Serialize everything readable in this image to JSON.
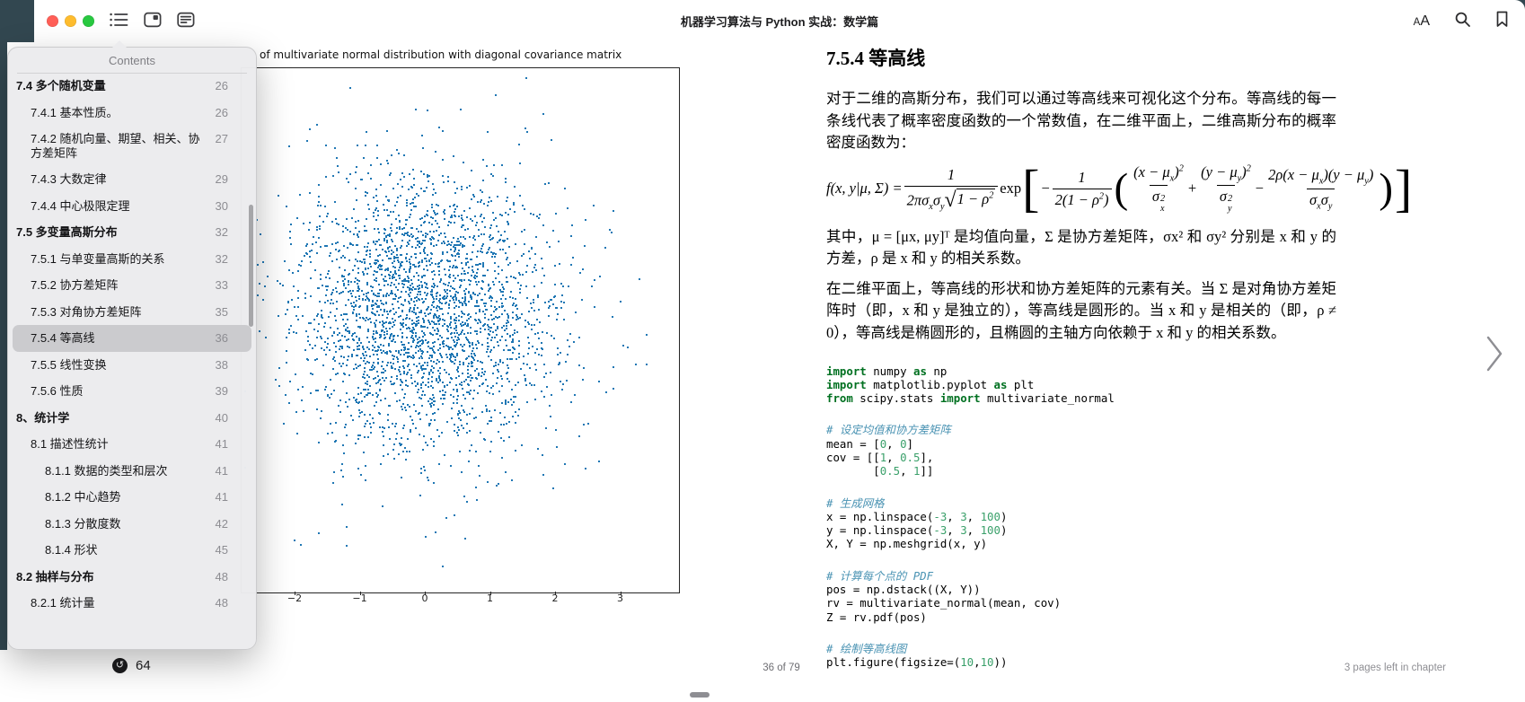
{
  "window": {
    "title": "机器学习算法与 Python 实战：数学篇",
    "toolbar": {
      "appearance_label": "AA",
      "icons_left": [
        "table-of-contents",
        "reading-view",
        "notes"
      ],
      "icons_right": [
        "text-appearance",
        "search",
        "bookmark"
      ]
    }
  },
  "contents_panel": {
    "title": "Contents",
    "items": [
      {
        "label": "7.4 多个随机变量",
        "page": "26",
        "level": 1,
        "bold": true
      },
      {
        "label": "7.4.1 基本性质。",
        "page": "26",
        "level": 2
      },
      {
        "label": "7.4.2 随机向量、期望、相关、协方差矩阵",
        "page": "27",
        "level": 2
      },
      {
        "label": "7.4.3 大数定律",
        "page": "29",
        "level": 2
      },
      {
        "label": "7.4.4 中心极限定理",
        "page": "30",
        "level": 2
      },
      {
        "label": "7.5 多变量高斯分布",
        "page": "32",
        "level": 1,
        "bold": true
      },
      {
        "label": "7.5.1 与单变量高斯的关系",
        "page": "32",
        "level": 2
      },
      {
        "label": "7.5.2 协方差矩阵",
        "page": "33",
        "level": 2
      },
      {
        "label": "7.5.3 对角协方差矩阵",
        "page": "35",
        "level": 2
      },
      {
        "label": "7.5.4 等高线",
        "page": "36",
        "level": 2,
        "selected": true
      },
      {
        "label": "7.5.5 线性变换",
        "page": "38",
        "level": 2
      },
      {
        "label": "7.5.6 性质",
        "page": "39",
        "level": 2
      },
      {
        "label": "8、统计学",
        "page": "40",
        "level": 1,
        "bold": true
      },
      {
        "label": "8.1 描述性统计",
        "page": "41",
        "level": 2
      },
      {
        "label": "8.1.1 数据的类型和层次",
        "page": "41",
        "level": 3
      },
      {
        "label": "8.1.2 中心趋势",
        "page": "41",
        "level": 3
      },
      {
        "label": "8.1.3 分散度数",
        "page": "42",
        "level": 3
      },
      {
        "label": "8.1.4 形状",
        "page": "45",
        "level": 3
      },
      {
        "label": "8.2 抽样与分布",
        "page": "48",
        "level": 1,
        "bold": true
      },
      {
        "label": "8.2.1 统计量",
        "page": "48",
        "level": 2
      }
    ]
  },
  "navigation": {
    "back_button_glyph": "↺",
    "back_button_label": "64",
    "page_indicator": "36 of 79",
    "pages_left": "3 pages left in chapter",
    "next_page_glyph": "›"
  },
  "left_page": {
    "plot_title_visible": "of multivariate normal distribution with diagonal covariance matrix"
  },
  "chart_data": {
    "type": "scatter",
    "title": "of multivariate normal distribution with diagonal covariance matrix",
    "x_ticks": [
      -2,
      -1,
      0,
      1,
      2,
      3
    ],
    "x_tick_labels": [
      "−2",
      "−1",
      "0",
      "1",
      "2",
      "3"
    ],
    "y_axis": "occluded by contents popover",
    "distribution": {
      "kind": "bivariate-normal-samples",
      "mean": [
        0,
        0
      ],
      "std": [
        1,
        1
      ],
      "approx_n": 2800
    },
    "marker_color": "#1f77b4",
    "grid": false,
    "legend": false
  },
  "right_page": {
    "heading": "7.5.4 等高线",
    "para1": "对于二维的高斯分布，我们可以通过等高线来可视化这个分布。等高线的每一条线代表了概率密度函数的一个常数值，在二维平面上，二维高斯分布的概率密度函数为：",
    "para2": "其中，μ = [μx, μy]ᵀ 是均值向量，Σ 是协方差矩阵，σx² 和 σy² 分别是 x 和 y 的方差，ρ 是 x 和 y 的相关系数。",
    "para3": "在二维平面上，等高线的形状和协方差矩阵的元素有关。当 Σ 是对角协方差矩阵时（即，x 和 y 是独立的），等高线是圆形的。当 x 和 y 是相关的（即，ρ ≠ 0），等高线是椭圆形的，且椭圆的主轴方向依赖于 x 和 y 的相关系数。",
    "formula_ast": [
      "f(x, y|μ, Σ) = ",
      {
        "f": [
          [
            "1"
          ],
          [
            "2πσ",
            {
              "s": "x"
            },
            "σ",
            {
              "s": "y"
            },
            {
              "r": [
                "1 − ρ",
                {
                  "p": "2"
                }
              ]
            }
          ]
        ]
      },
      {
        "u": "exp"
      },
      {
        "b": "[",
        "cls": "b1"
      },
      " − ",
      {
        "f": [
          [
            "1"
          ],
          [
            "2(1 − ρ",
            {
              "p": "2"
            },
            ")"
          ]
        ]
      },
      {
        "b": "(",
        "cls": "b2"
      },
      {
        "f": [
          [
            "(x − μ",
            {
              "s": "x"
            },
            ")",
            {
              "p": "2"
            }
          ],
          [
            "σ",
            {
              "ss": [
                "x",
                "2"
              ]
            }
          ]
        ]
      },
      {
        "u": " + "
      },
      {
        "f": [
          [
            "(y − μ",
            {
              "s": "y"
            },
            ")",
            {
              "p": "2"
            }
          ],
          [
            "σ",
            {
              "ss": [
                "y",
                "2"
              ]
            }
          ]
        ]
      },
      {
        "u": " − "
      },
      {
        "f": [
          [
            "2ρ(x − μ",
            {
              "s": "x"
            },
            ")(y − μ",
            {
              "s": "y"
            },
            ")"
          ],
          [
            "σ",
            {
              "s": "x"
            },
            "σ",
            {
              "s": "y"
            }
          ]
        ]
      },
      {
        "b": ")",
        "cls": "b2"
      },
      {
        "b": "]",
        "cls": "b1"
      }
    ],
    "code_lines": [
      [
        {
          "t": "import",
          "c": "k"
        },
        {
          "t": " numpy ",
          "c": "p"
        },
        {
          "t": "as",
          "c": "k"
        },
        {
          "t": " np",
          "c": "p"
        }
      ],
      [
        {
          "t": "import",
          "c": "k"
        },
        {
          "t": " matplotlib.pyplot ",
          "c": "p"
        },
        {
          "t": "as",
          "c": "k"
        },
        {
          "t": " plt",
          "c": "p"
        }
      ],
      [
        {
          "t": "from",
          "c": "k"
        },
        {
          "t": " scipy.stats ",
          "c": "p"
        },
        {
          "t": "import",
          "c": "k"
        },
        {
          "t": " multivariate_normal",
          "c": "p"
        }
      ],
      [],
      [
        {
          "t": "# 设定均值和协方差矩阵",
          "c": "c"
        }
      ],
      [
        {
          "t": "mean = [",
          "c": "p"
        },
        {
          "t": "0",
          "c": "n"
        },
        {
          "t": ", ",
          "c": "p"
        },
        {
          "t": "0",
          "c": "n"
        },
        {
          "t": "]",
          "c": "p"
        }
      ],
      [
        {
          "t": "cov = [[",
          "c": "p"
        },
        {
          "t": "1",
          "c": "n"
        },
        {
          "t": ", ",
          "c": "p"
        },
        {
          "t": "0.5",
          "c": "n"
        },
        {
          "t": "],",
          "c": "p"
        }
      ],
      [
        {
          "t": "       [",
          "c": "p"
        },
        {
          "t": "0.5",
          "c": "n"
        },
        {
          "t": ", ",
          "c": "p"
        },
        {
          "t": "1",
          "c": "n"
        },
        {
          "t": "]]",
          "c": "p"
        }
      ],
      [],
      [
        {
          "t": "# 生成网格",
          "c": "c"
        }
      ],
      [
        {
          "t": "x = np.linspace(",
          "c": "p"
        },
        {
          "t": "-3",
          "c": "n"
        },
        {
          "t": ", ",
          "c": "p"
        },
        {
          "t": "3",
          "c": "n"
        },
        {
          "t": ", ",
          "c": "p"
        },
        {
          "t": "100",
          "c": "n"
        },
        {
          "t": ")",
          "c": "p"
        }
      ],
      [
        {
          "t": "y = np.linspace(",
          "c": "p"
        },
        {
          "t": "-3",
          "c": "n"
        },
        {
          "t": ", ",
          "c": "p"
        },
        {
          "t": "3",
          "c": "n"
        },
        {
          "t": ", ",
          "c": "p"
        },
        {
          "t": "100",
          "c": "n"
        },
        {
          "t": ")",
          "c": "p"
        }
      ],
      [
        {
          "t": "X, Y = np.meshgrid(x, y)",
          "c": "p"
        }
      ],
      [],
      [
        {
          "t": "# 计算每个点的 PDF",
          "c": "c"
        }
      ],
      [
        {
          "t": "pos = np.dstack((X, Y))",
          "c": "p"
        }
      ],
      [
        {
          "t": "rv = multivariate_normal(mean, cov)",
          "c": "p"
        }
      ],
      [
        {
          "t": "Z = rv.pdf(pos)",
          "c": "p"
        }
      ],
      [],
      [
        {
          "t": "# 绘制等高线图",
          "c": "c"
        }
      ],
      [
        {
          "t": "plt.figure(figsize=(",
          "c": "p"
        },
        {
          "t": "10",
          "c": "n"
        },
        {
          "t": ",",
          "c": "p"
        },
        {
          "t": "10",
          "c": "n"
        },
        {
          "t": "))",
          "c": "p"
        }
      ]
    ]
  },
  "colors": {
    "desktop": "#324750",
    "scatter_point": "#1f77b4",
    "traffic_red": "#ff5f57",
    "traffic_yellow": "#febc2e",
    "traffic_green": "#28c840",
    "code_keyword": "#007020",
    "code_comment": "#4a93b3",
    "code_number": "#3aa06a"
  }
}
